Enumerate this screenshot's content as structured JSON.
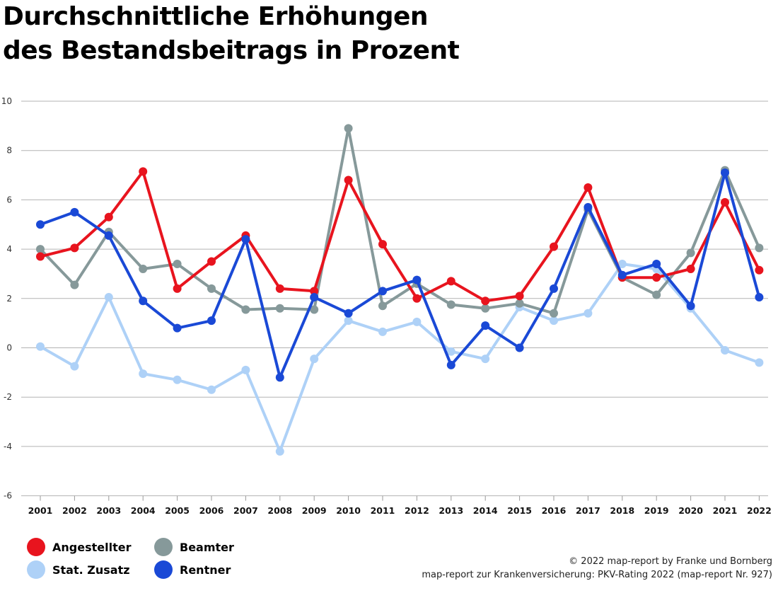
{
  "title_line1": "Durchschnittliche Erhöhungen",
  "title_line2": "des Bestandsbeitrags in Prozent",
  "credits": {
    "line1": "© 2022 map-report by Franke und Bornberg",
    "line2": "map-report zur Krankenversicherung: PKV-Rating 2022 (map-report Nr. 927)"
  },
  "legend": [
    {
      "label": "Angestellter",
      "color": "#e8141e"
    },
    {
      "label": "Beamter",
      "color": "#86999a"
    },
    {
      "label": "Stat. Zusatz",
      "color": "#aed1f7"
    },
    {
      "label": "Rentner",
      "color": "#1a49d6"
    }
  ],
  "chart_data": {
    "type": "line",
    "title": "Durchschnittliche Erhöhungen des Bestandsbeitrags in Prozent",
    "xlabel": "",
    "ylabel": "",
    "ylim": [
      -6,
      10
    ],
    "yticks": [
      10,
      8,
      6,
      4,
      2,
      0,
      -2,
      -4,
      -6
    ],
    "yticklabels": [
      "10",
      "8",
      "6",
      "4",
      "2",
      "0",
      "-2",
      "-4",
      "-6"
    ],
    "grid": true,
    "categories": [
      "2001",
      "2002",
      "2003",
      "2004",
      "2005",
      "2006",
      "2007",
      "2008",
      "2009",
      "2010",
      "2011",
      "2012",
      "2013",
      "2014",
      "2015",
      "2016",
      "2017",
      "2018",
      "2019",
      "2020",
      "2021",
      "2022"
    ],
    "series": [
      {
        "name": "Stat. Zusatz",
        "color": "#aed1f7",
        "values": [
          0.05,
          -0.75,
          2.05,
          -1.05,
          -1.3,
          -1.7,
          -0.9,
          -4.2,
          -0.45,
          1.1,
          0.65,
          1.05,
          -0.15,
          -0.45,
          1.65,
          1.1,
          1.4,
          3.4,
          3.2,
          1.6,
          -0.1,
          -0.6
        ]
      },
      {
        "name": "Beamter",
        "color": "#86999a",
        "values": [
          4.0,
          2.55,
          4.7,
          3.2,
          3.4,
          2.4,
          1.55,
          1.6,
          1.55,
          8.9,
          1.7,
          2.6,
          1.75,
          1.6,
          1.8,
          1.4,
          5.6,
          2.85,
          2.15,
          3.85,
          7.2,
          4.05
        ]
      },
      {
        "name": "Angestellter",
        "color": "#e8141e",
        "values": [
          3.7,
          4.05,
          5.3,
          7.15,
          2.4,
          3.5,
          4.55,
          2.4,
          2.3,
          6.8,
          4.2,
          2.0,
          2.7,
          1.9,
          2.1,
          4.1,
          6.5,
          2.85,
          2.85,
          3.2,
          5.9,
          3.15
        ]
      },
      {
        "name": "Rentner",
        "color": "#1a49d6",
        "values": [
          5.0,
          5.5,
          4.55,
          1.9,
          0.8,
          1.1,
          4.4,
          -1.2,
          2.05,
          1.4,
          2.3,
          2.75,
          -0.7,
          0.9,
          0.0,
          2.4,
          5.7,
          2.95,
          3.4,
          1.7,
          7.1,
          2.05
        ]
      }
    ]
  }
}
